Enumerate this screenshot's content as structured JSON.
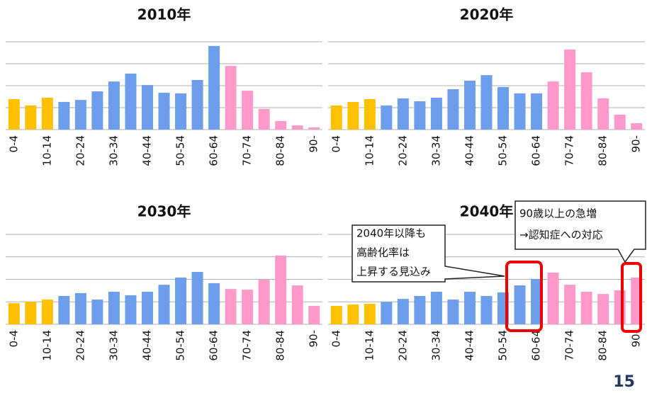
{
  "chart_data": [
    {
      "type": "bar",
      "title": "2010年",
      "categories": [
        "0-4",
        null,
        "10-14",
        null,
        "20-24",
        null,
        "30-34",
        null,
        "40-44",
        null,
        "50-54",
        null,
        "60-64",
        null,
        "70-74",
        null,
        "80-84",
        null,
        "90-"
      ],
      "values": [
        1.39,
        1.1,
        1.45,
        1.26,
        1.35,
        1.74,
        2.19,
        2.55,
        2.03,
        1.68,
        1.65,
        2.26,
        3.81,
        2.9,
        1.77,
        0.94,
        0.39,
        0.19,
        0.1
      ],
      "colors": [
        "#ffc000",
        "#ffc000",
        "#ffc000",
        "#6d9eeb",
        "#6d9eeb",
        "#6d9eeb",
        "#6d9eeb",
        "#6d9eeb",
        "#6d9eeb",
        "#6d9eeb",
        "#6d9eeb",
        "#6d9eeb",
        "#6d9eeb",
        "#ff99cc",
        "#ff99cc",
        "#ff99cc",
        "#ff99cc",
        "#ff99cc",
        "#ff99cc"
      ],
      "ylim": [
        0,
        4
      ],
      "yticks": [
        0,
        1,
        2,
        3,
        4
      ],
      "grid": true
    },
    {
      "type": "bar",
      "title": "2020年",
      "categories": [
        "0-4",
        null,
        "10-14",
        null,
        "20-24",
        null,
        "30-34",
        null,
        "40-44",
        null,
        "50-54",
        null,
        "60-64",
        null,
        "70-74",
        null,
        "80-84",
        null,
        "90-"
      ],
      "values": [
        1.1,
        1.26,
        1.39,
        1.1,
        1.42,
        1.29,
        1.45,
        1.84,
        2.23,
        2.48,
        1.94,
        1.65,
        1.65,
        2.19,
        3.65,
        2.61,
        1.42,
        0.68,
        0.29
      ],
      "colors": [
        "#ffc000",
        "#ffc000",
        "#ffc000",
        "#6d9eeb",
        "#6d9eeb",
        "#6d9eeb",
        "#6d9eeb",
        "#6d9eeb",
        "#6d9eeb",
        "#6d9eeb",
        "#6d9eeb",
        "#6d9eeb",
        "#6d9eeb",
        "#ff99cc",
        "#ff99cc",
        "#ff99cc",
        "#ff99cc",
        "#ff99cc",
        "#ff99cc"
      ],
      "ylim": [
        0,
        4
      ],
      "yticks": [
        0,
        1,
        2,
        3,
        4
      ],
      "grid": true
    },
    {
      "type": "bar",
      "title": "2030年",
      "categories": [
        "0-4",
        null,
        "10-14",
        null,
        "20-24",
        null,
        "30-34",
        null,
        "40-44",
        null,
        "50-54",
        null,
        "60-64",
        null,
        "70-74",
        null,
        "80-84",
        null,
        "90-"
      ],
      "values": [
        0.94,
        1.0,
        1.1,
        1.26,
        1.39,
        1.1,
        1.45,
        1.29,
        1.45,
        1.76,
        2.08,
        2.33,
        1.83,
        1.57,
        1.54,
        1.98,
        3.06,
        1.73,
        0.82
      ],
      "colors": [
        "#ffc000",
        "#ffc000",
        "#ffc000",
        "#6d9eeb",
        "#6d9eeb",
        "#6d9eeb",
        "#6d9eeb",
        "#6d9eeb",
        "#6d9eeb",
        "#6d9eeb",
        "#6d9eeb",
        "#6d9eeb",
        "#6d9eeb",
        "#ff99cc",
        "#ff99cc",
        "#ff99cc",
        "#ff99cc",
        "#ff99cc",
        "#ff99cc"
      ],
      "ylim": [
        0,
        4
      ],
      "yticks": [
        0,
        1,
        2,
        3,
        4
      ],
      "grid": true
    },
    {
      "type": "bar",
      "title": "2040年",
      "categories": [
        "0-4",
        null,
        "10-14",
        null,
        "20-24",
        null,
        "30-34",
        null,
        "40-44",
        null,
        "50-54",
        null,
        "60-64",
        null,
        "70-74",
        null,
        "80-84",
        null,
        "90-"
      ],
      "values": [
        0.82,
        0.88,
        0.91,
        1.0,
        1.13,
        1.26,
        1.45,
        1.1,
        1.45,
        1.26,
        1.42,
        1.73,
        2.02,
        2.3,
        1.76,
        1.45,
        1.35,
        1.51,
        2.08
      ],
      "colors": [
        "#ffc000",
        "#ffc000",
        "#ffc000",
        "#6d9eeb",
        "#6d9eeb",
        "#6d9eeb",
        "#6d9eeb",
        "#6d9eeb",
        "#6d9eeb",
        "#6d9eeb",
        "#6d9eeb",
        "#6d9eeb",
        "#6d9eeb",
        "#ff99cc",
        "#ff99cc",
        "#ff99cc",
        "#ff99cc",
        "#ff99cc",
        "#ff99cc"
      ],
      "ylim": [
        0,
        4
      ],
      "yticks": [
        0,
        1,
        2,
        3,
        4
      ],
      "grid": true,
      "annotations": [
        {
          "lines": [
            "2040年以降も",
            "高齢化率は",
            "上昇する見込み"
          ]
        },
        {
          "lines": [
            "90歳以上の急増",
            "→認知症への対応"
          ]
        }
      ]
    }
  ],
  "page_number": "15"
}
